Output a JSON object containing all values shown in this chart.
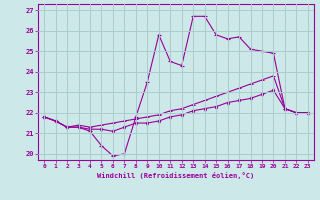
{
  "xlabel": "Windchill (Refroidissement éolien,°C)",
  "xlim": [
    -0.5,
    23.5
  ],
  "ylim": [
    19.7,
    27.3
  ],
  "yticks": [
    20,
    21,
    22,
    23,
    24,
    25,
    26,
    27
  ],
  "xticks": [
    0,
    1,
    2,
    3,
    4,
    5,
    6,
    7,
    8,
    9,
    10,
    11,
    12,
    13,
    14,
    15,
    16,
    17,
    18,
    19,
    20,
    21,
    22,
    23
  ],
  "background_color": "#cce8e8",
  "line_color": "#990099",
  "grid_color": "#aacccc",
  "line1_y": [
    21.8,
    21.6,
    21.3,
    21.3,
    21.1,
    20.4,
    19.9,
    20.0,
    21.8,
    23.5,
    25.8,
    24.5,
    24.3,
    26.7,
    26.7,
    25.8,
    25.6,
    25.7,
    25.1,
    25.0,
    24.9,
    22.2,
    22.0,
    22.0
  ],
  "line2_y": [
    21.8,
    21.6,
    21.3,
    21.3,
    21.2,
    21.2,
    21.1,
    21.3,
    21.5,
    21.5,
    21.6,
    21.8,
    21.9,
    22.1,
    22.2,
    22.3,
    22.5,
    22.6,
    22.7,
    22.9,
    23.1,
    22.2,
    22.0,
    22.0
  ],
  "line3_y": [
    21.8,
    21.6,
    21.3,
    21.4,
    21.3,
    21.4,
    21.5,
    21.6,
    21.7,
    21.8,
    21.9,
    22.1,
    22.2,
    22.4,
    22.6,
    22.8,
    23.0,
    23.2,
    23.4,
    23.6,
    23.8,
    22.2,
    22.0,
    22.0
  ]
}
